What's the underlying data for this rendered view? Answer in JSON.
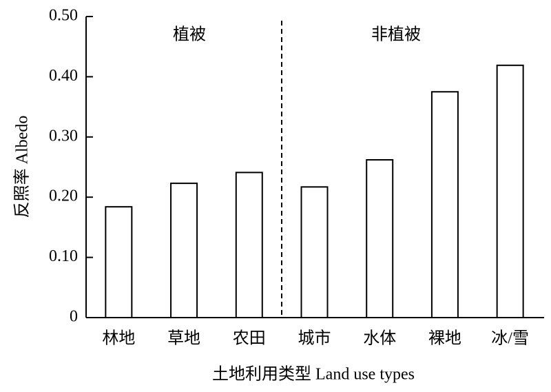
{
  "chart_data": {
    "type": "bar",
    "categories": [
      "林地",
      "草地",
      "农田",
      "城市",
      "水体",
      "裸地",
      "冰/雪"
    ],
    "values": [
      0.184,
      0.223,
      0.241,
      0.217,
      0.262,
      0.375,
      0.419
    ],
    "color": "#ffffff",
    "ylim": [
      0,
      0.5
    ],
    "yticks": [
      0,
      {
        "value": 0.1,
        "label": "0.10"
      },
      {
        "value": 0.2,
        "label": "0.20"
      },
      {
        "value": 0.3,
        "label": "0.30"
      },
      {
        "value": 0.4,
        "label": "0.40"
      },
      {
        "value": 0.5,
        "label": "0.50"
      }
    ],
    "y_label": "反照率 Albedo",
    "x_label": "土地利用类型  Land use types",
    "annotations": [
      "植被",
      "非植被"
    ]
  }
}
